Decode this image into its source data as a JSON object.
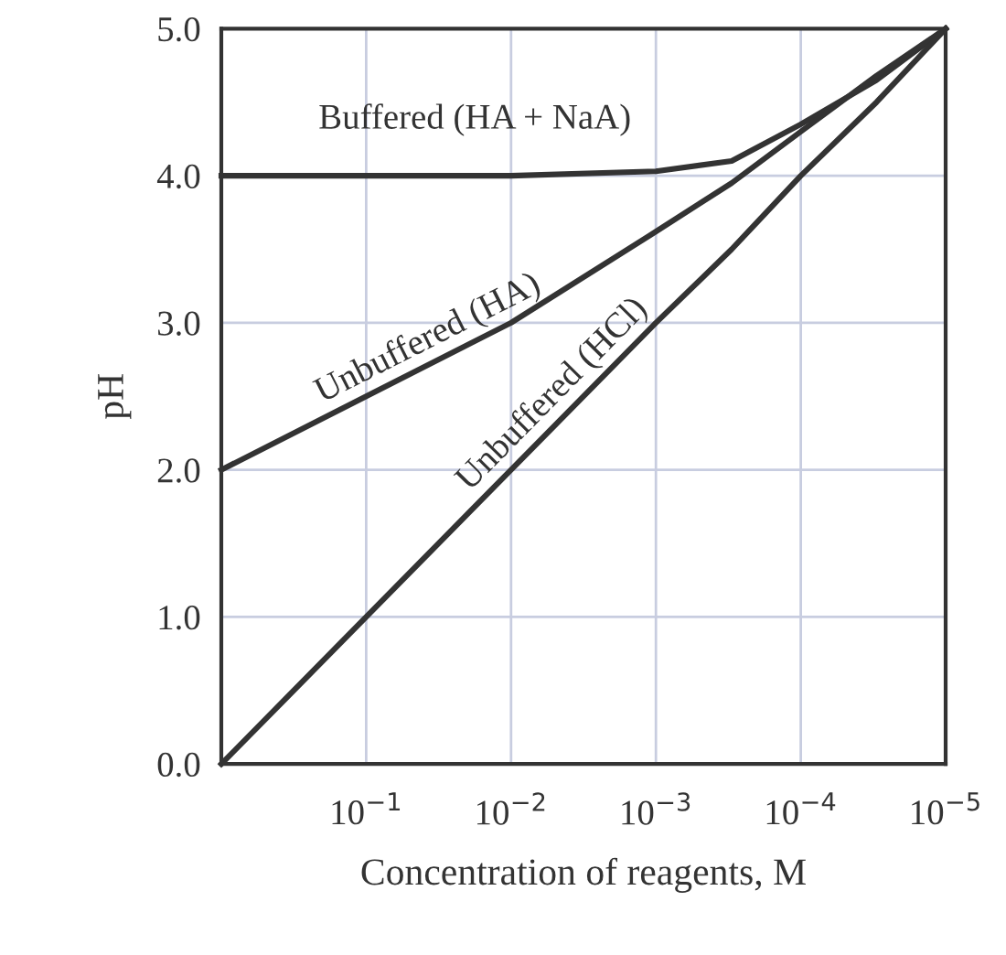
{
  "chart_data": {
    "type": "line",
    "xlabel": "Concentration of reagents, M",
    "ylabel": "pH",
    "x": [
      1,
      0.1,
      0.01,
      0.001,
      0.0003,
      0.0001,
      3e-05,
      1e-05
    ],
    "series": [
      {
        "name": "Buffered (HA + NaA)",
        "color": "#333333",
        "values": [
          4.0,
          4.0,
          4.0,
          4.03,
          4.1,
          4.35,
          4.65,
          5.0
        ]
      },
      {
        "name": "Unbuffered (HA)",
        "color": "#333333",
        "values": [
          2.0,
          2.5,
          3.0,
          3.62,
          3.95,
          4.3,
          4.68,
          5.0
        ]
      },
      {
        "name": "Unbuffered (HCl)",
        "color": "#333333",
        "values": [
          0.0,
          1.0,
          2.0,
          3.0,
          3.5,
          4.0,
          4.5,
          5.0
        ]
      }
    ],
    "log": "x",
    "xlim": [
      1,
      1e-05
    ],
    "xticks": [
      {
        "value": 0.1,
        "label": "10$^{−1}$"
      },
      {
        "value": 0.01,
        "label": "10$^{−2}$"
      },
      {
        "value": 0.001,
        "label": "10$^{−3}$"
      },
      {
        "value": 0.0001,
        "label": "10$^{−4}$"
      },
      {
        "value": 1e-05,
        "label": "10$^{−5}$"
      }
    ],
    "ylim": [
      0,
      5
    ],
    "yticks": [
      {
        "value": 0,
        "label": "0.0"
      },
      {
        "value": 1,
        "label": "1.0"
      },
      {
        "value": 2,
        "label": "2.0"
      },
      {
        "value": 3,
        "label": "3.0"
      },
      {
        "value": 4,
        "label": "4.0"
      },
      {
        "value": 5,
        "label": "5.0"
      }
    ],
    "grid": true,
    "legend": false,
    "marker": "none",
    "line_style": "solid"
  }
}
